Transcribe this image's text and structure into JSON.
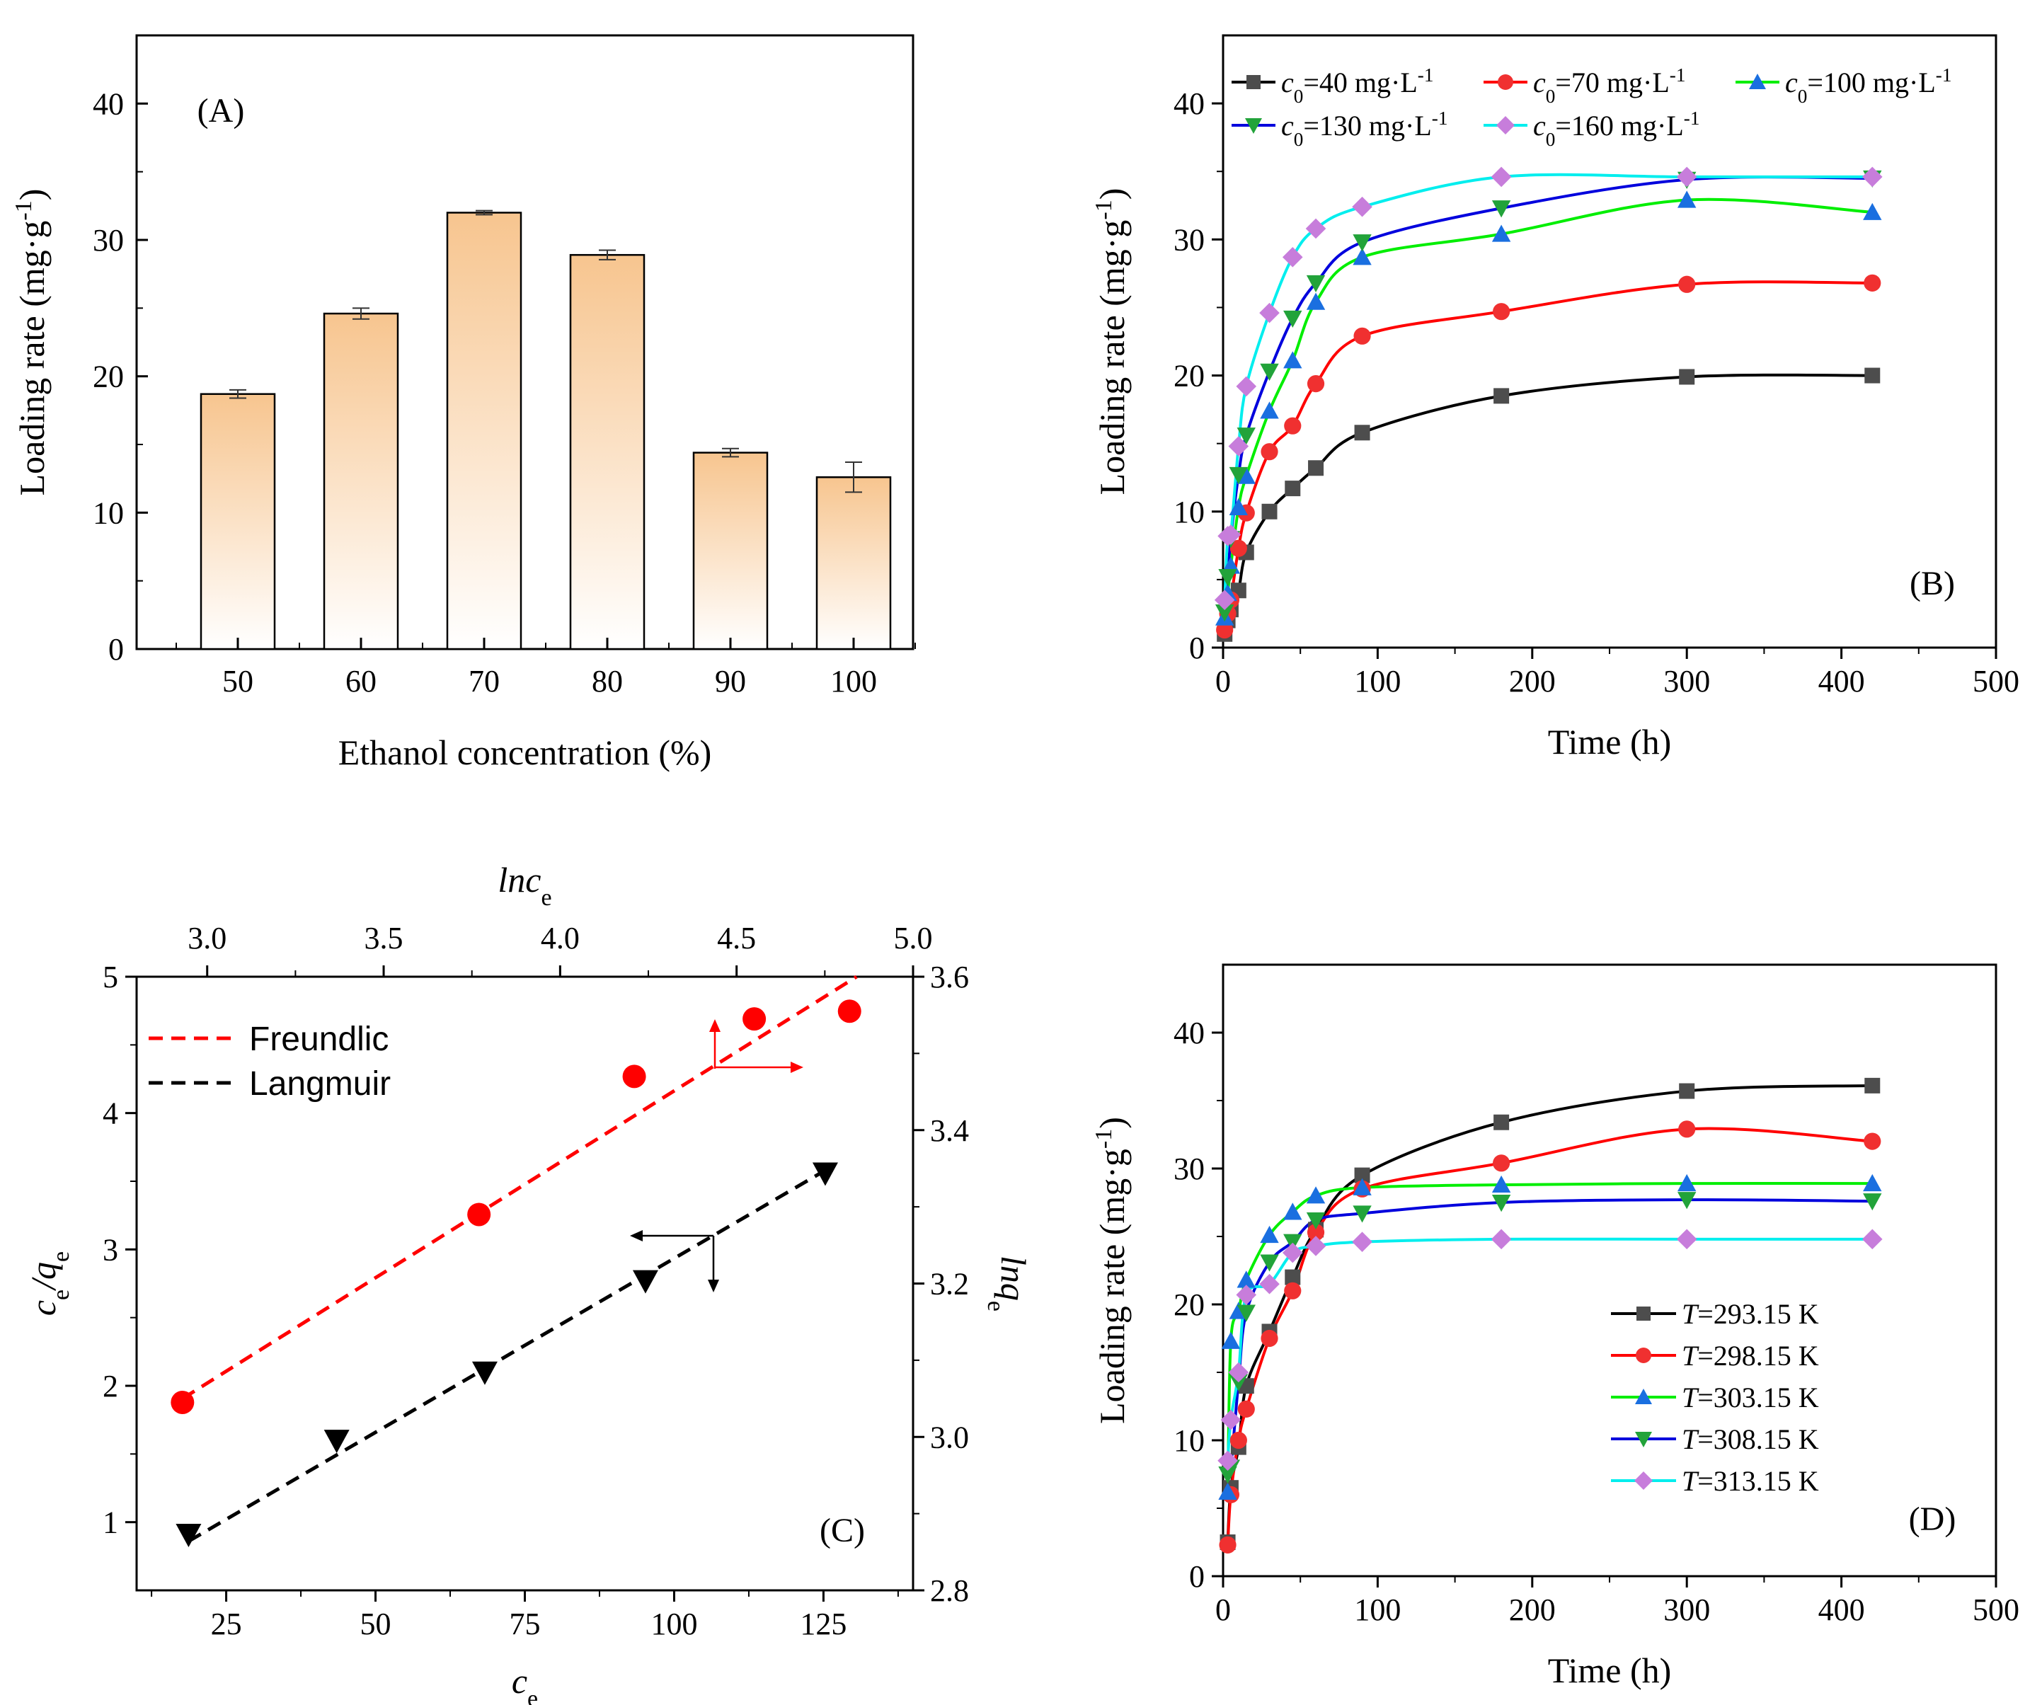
{
  "chart_data": [
    {
      "panel": "(A)",
      "type": "bar",
      "xlabel": "Ethanol concentration (%)",
      "ylabel": "Loading rate (mg·g⁻¹)",
      "ylabel_parts": [
        "Loading rate (mg·g",
        "-1",
        ")"
      ],
      "ylim": [
        0,
        45
      ],
      "yticks": [
        "0",
        "10",
        "20",
        "30",
        "40"
      ],
      "categories": [
        "50",
        "60",
        "70",
        "80",
        "90",
        "100"
      ],
      "values": [
        18.7,
        24.6,
        32.0,
        28.9,
        14.4,
        12.6
      ],
      "errors": [
        0.3,
        0.4,
        0.15,
        0.35,
        0.3,
        1.1
      ],
      "bar_color_top": "#f7c58f",
      "bar_color_bottom": "#ffffff"
    },
    {
      "panel": "(B)",
      "type": "line",
      "xlabel": "Time (h)",
      "ylabel": "Loading rate (mg·g⁻¹)",
      "ylabel_parts": [
        "Loading rate (mg·g",
        "-1",
        ")"
      ],
      "xlim": [
        0,
        500
      ],
      "ylim": [
        0,
        45
      ],
      "xticks": [
        "0",
        "100",
        "200",
        "300",
        "400",
        "500"
      ],
      "yticks": [
        "0",
        "10",
        "20",
        "30",
        "40"
      ],
      "x": [
        1,
        3,
        5,
        10,
        15,
        30,
        45,
        60,
        90,
        180,
        300,
        420
      ],
      "series": [
        {
          "name": "c0=40  mg·L-1",
          "label_parts": [
            "c",
            "0",
            "=40  mg·L",
            "-1"
          ],
          "color": "#000000",
          "marker_color": "#4d4d4d",
          "marker": "square",
          "values": [
            1.0,
            2.0,
            2.8,
            4.2,
            7.0,
            10.0,
            11.7,
            13.2,
            15.8,
            18.5,
            19.9,
            20.0
          ]
        },
        {
          "name": "c0=70  mg·L-1",
          "label_parts": [
            "c",
            "0",
            "=70  mg·L",
            "-1"
          ],
          "color": "#ff0000",
          "marker_color": "#f03030",
          "marker": "circle",
          "values": [
            1.3,
            2.5,
            3.5,
            7.3,
            9.9,
            14.4,
            16.3,
            19.4,
            22.9,
            24.7,
            26.7,
            26.8
          ]
        },
        {
          "name": "c0=100 mg·L-1",
          "label_parts": [
            "c",
            "0",
            "=100 mg·L",
            "-1"
          ],
          "color": "#00ee00",
          "marker_color": "#1a6fe0",
          "marker": "triangle-up",
          "values": [
            2.2,
            4.0,
            6.0,
            10.3,
            12.6,
            17.4,
            21.1,
            25.4,
            28.7,
            30.4,
            32.9,
            32.0
          ]
        },
        {
          "name": "c0=130 mg·L-1",
          "label_parts": [
            "c",
            "0",
            "=130 mg·L",
            "-1"
          ],
          "color": "#0000dd",
          "marker_color": "#22a33a",
          "marker": "triangle-down",
          "values": [
            2.6,
            5.2,
            8.0,
            12.7,
            15.6,
            20.3,
            24.2,
            26.8,
            29.8,
            32.3,
            34.4,
            34.5
          ]
        },
        {
          "name": "c0=160 mg·L-1",
          "label_parts": [
            "c",
            "0",
            "=160 mg·L",
            "-1"
          ],
          "color": "#00eeee",
          "marker_color": "#c77ddb",
          "marker": "diamond",
          "values": [
            3.5,
            8.2,
            8.3,
            14.8,
            19.2,
            24.6,
            28.7,
            30.8,
            32.4,
            34.6,
            34.6,
            34.6
          ]
        }
      ],
      "tag": "(B)"
    },
    {
      "panel": "(C)",
      "type": "scatter",
      "xlabel": "ce",
      "xlabel_parts": [
        "c",
        "e"
      ],
      "ylabel": "ce/qe",
      "ylabel_parts": [
        "c",
        "e",
        "/q",
        "e"
      ],
      "top_xlabel": "lnce",
      "top_xlabel_parts": [
        "lnc",
        "e"
      ],
      "right_ylabel": "lnqe",
      "right_ylabel_parts": [
        "lnq",
        "e"
      ],
      "xlim": [
        10,
        140
      ],
      "ylim": [
        0.5,
        5.0
      ],
      "top_xlim": [
        2.8,
        5.0
      ],
      "right_ylim": [
        2.8,
        3.6
      ],
      "xticks": [
        "25",
        "50",
        "75",
        "100",
        "125"
      ],
      "yticks": [
        "1",
        "2",
        "3",
        "4",
        "5"
      ],
      "top_xticks": [
        "3.0",
        "3.5",
        "4.0",
        "4.5",
        "5.0"
      ],
      "right_yticks": [
        "2.8",
        "3.0",
        "3.2",
        "3.4",
        "3.6"
      ],
      "series": [
        {
          "name": "Langmuir",
          "color": "#000000",
          "marker": "triangle-down",
          "axes": "bottom-left",
          "x": [
            18.7,
            43.5,
            68.3,
            95.2,
            125.3
          ],
          "y": [
            0.91,
            1.6,
            2.1,
            2.77,
            3.56
          ],
          "fit": [
            [
              18.7,
              0.86
            ],
            [
              125.3,
              3.58
            ]
          ]
        },
        {
          "name": "Freundlic",
          "color": "#ff0000",
          "marker": "circle",
          "axes": "top-right",
          "x": [
            2.93,
            3.77,
            4.21,
            4.55,
            4.82
          ],
          "y": [
            3.045,
            3.29,
            3.47,
            3.545,
            3.555
          ],
          "fit": [
            [
              2.93,
              3.05
            ],
            [
              4.84,
              3.6
            ]
          ]
        }
      ],
      "tag": "(C)"
    },
    {
      "panel": "(D)",
      "type": "line",
      "xlabel": "Time (h)",
      "ylabel": "Loading rate (mg·g⁻¹)",
      "ylabel_parts": [
        "Loading rate (mg·g",
        "-1",
        ")"
      ],
      "xlim": [
        0,
        500
      ],
      "ylim": [
        0,
        45
      ],
      "xticks": [
        "0",
        "100",
        "200",
        "300",
        "400",
        "500"
      ],
      "yticks": [
        "0",
        "10",
        "20",
        "30",
        "40"
      ],
      "x": [
        3,
        5,
        10,
        15,
        30,
        45,
        60,
        90,
        180,
        300,
        420
      ],
      "series": [
        {
          "name": "T=293.15 K",
          "label_parts": [
            "T",
            "=293.15 K"
          ],
          "color": "#000000",
          "marker_color": "#4d4d4d",
          "marker": "square",
          "values": [
            2.5,
            6.5,
            9.5,
            14.0,
            18.0,
            22.0,
            25.5,
            29.5,
            33.4,
            35.7,
            36.1
          ]
        },
        {
          "name": "T=298.15 K",
          "label_parts": [
            "T",
            "=298.15 K"
          ],
          "color": "#ff0000",
          "marker_color": "#f03030",
          "marker": "circle",
          "values": [
            2.3,
            6.0,
            10.0,
            12.3,
            17.5,
            21.0,
            25.3,
            28.5,
            30.4,
            32.9,
            32.0
          ]
        },
        {
          "name": "T=303.15 K",
          "label_parts": [
            "T",
            "=303.15 K"
          ],
          "color": "#00ee00",
          "marker_color": "#1a6fe0",
          "marker": "triangle-up",
          "values": [
            6.2,
            17.3,
            19.5,
            21.8,
            25.1,
            26.8,
            28.0,
            28.6,
            28.8,
            28.9,
            28.9
          ]
        },
        {
          "name": "T=308.15 K",
          "label_parts": [
            "T",
            "=308.15 K"
          ],
          "color": "#0000dd",
          "marker_color": "#22a33a",
          "marker": "triangle-down",
          "values": [
            7.5,
            8.0,
            14.3,
            19.4,
            23.1,
            24.6,
            26.2,
            26.7,
            27.5,
            27.7,
            27.6
          ]
        },
        {
          "name": "T=313.15 K",
          "label_parts": [
            "T",
            "=313.15 K"
          ],
          "color": "#00eeee",
          "marker_color": "#c77ddb",
          "marker": "diamond",
          "values": [
            8.5,
            11.5,
            15.0,
            20.7,
            21.5,
            23.8,
            24.3,
            24.6,
            24.8,
            24.8,
            24.8
          ]
        }
      ],
      "tag": "(D)"
    }
  ]
}
